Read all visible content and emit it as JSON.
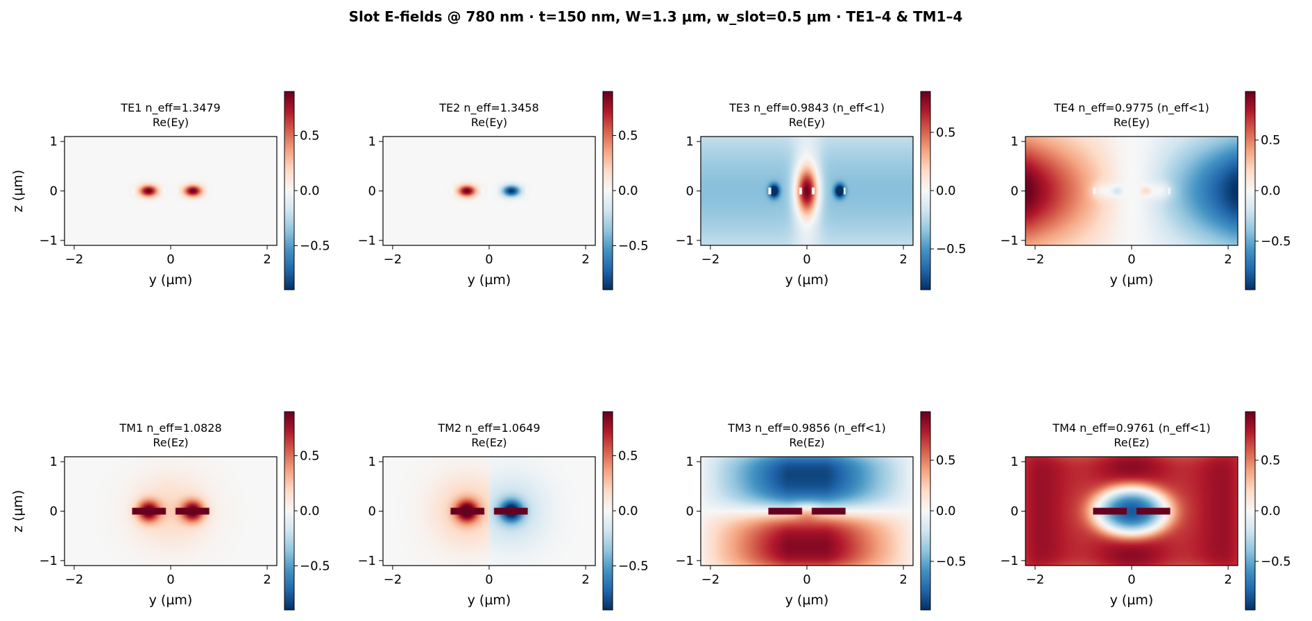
{
  "title": "Slot E-fields @ 780 nm · t=150 nm, W=1.3 μm, w_slot=0.5 μm · TE1–4 & TM1–4",
  "chart_data": {
    "type": "heatmap",
    "colormap": "RdBu_r",
    "colormap_colors": [
      "#053061",
      "#2166ac",
      "#4393c3",
      "#92c5de",
      "#d1e5f0",
      "#f7f7f7",
      "#fddbc7",
      "#f4a582",
      "#d6604d",
      "#b2182b",
      "#67001f"
    ],
    "grid": false,
    "panels": [
      {
        "mode": "TE1",
        "title_line1": "TE1  n_eff=1.3479",
        "title_line2": "Re(Ey)",
        "component": "Ey",
        "n_eff": 1.3479,
        "below_light_line": false,
        "xlabel": "y (µm)",
        "ylabel": "z (µm)",
        "xlim": [
          -2.2,
          2.2
        ],
        "ylim": [
          -1.1,
          1.1
        ],
        "xticks": [
          "−2",
          "0",
          "2"
        ],
        "yticks": [
          "1",
          "0",
          "−1"
        ],
        "clim": [
          -0.9,
          0.9
        ],
        "cbar_ticks": [
          "0.5",
          "0.0",
          "−0.5"
        ]
      },
      {
        "mode": "TE2",
        "title_line1": "TE2  n_eff=1.3458",
        "title_line2": "Re(Ey)",
        "component": "Ey",
        "n_eff": 1.3458,
        "below_light_line": false,
        "xlabel": "y (µm)",
        "ylabel": "",
        "xlim": [
          -2.2,
          2.2
        ],
        "ylim": [
          -1.1,
          1.1
        ],
        "xticks": [
          "−2",
          "0",
          "2"
        ],
        "yticks": [
          "1",
          "0",
          "−1"
        ],
        "clim": [
          -0.9,
          0.9
        ],
        "cbar_ticks": [
          "0.5",
          "0.0",
          "−0.5"
        ]
      },
      {
        "mode": "TE3",
        "title_line1": "TE3  n_eff=0.9843  (n_eff<1)",
        "title_line2": "Re(Ey)",
        "component": "Ey",
        "n_eff": 0.9843,
        "below_light_line": true,
        "xlabel": "y (µm)",
        "ylabel": "",
        "xlim": [
          -2.2,
          2.2
        ],
        "ylim": [
          -1.1,
          1.1
        ],
        "xticks": [
          "−2",
          "0",
          "2"
        ],
        "yticks": [
          "1",
          "0",
          "−1"
        ],
        "clim": [
          -0.85,
          0.85
        ],
        "cbar_ticks": [
          "0.5",
          "0.0",
          "−0.5"
        ]
      },
      {
        "mode": "TE4",
        "title_line1": "TE4  n_eff=0.9775  (n_eff<1)",
        "title_line2": "Re(Ey)",
        "component": "Ey",
        "n_eff": 0.9775,
        "below_light_line": true,
        "xlabel": "y (µm)",
        "ylabel": "",
        "xlim": [
          -2.2,
          2.2
        ],
        "ylim": [
          -1.1,
          1.1
        ],
        "xticks": [
          "−2",
          "0",
          "2"
        ],
        "yticks": [
          "1",
          "0",
          "−1"
        ],
        "clim": [
          -0.98,
          0.98
        ],
        "cbar_ticks": [
          "0.5",
          "0.0",
          "−0.5"
        ]
      },
      {
        "mode": "TM1",
        "title_line1": "TM1  n_eff=1.0828",
        "title_line2": "Re(Ez)",
        "component": "Ez",
        "n_eff": 1.0828,
        "below_light_line": false,
        "xlabel": "y (µm)",
        "ylabel": "z (µm)",
        "xlim": [
          -2.2,
          2.2
        ],
        "ylim": [
          -1.1,
          1.1
        ],
        "xticks": [
          "−2",
          "0",
          "2"
        ],
        "yticks": [
          "1",
          "0",
          "−1"
        ],
        "clim": [
          -0.9,
          0.9
        ],
        "cbar_ticks": [
          "0.5",
          "0.0",
          "−0.5"
        ]
      },
      {
        "mode": "TM2",
        "title_line1": "TM2  n_eff=1.0649",
        "title_line2": "Re(Ez)",
        "component": "Ez",
        "n_eff": 1.0649,
        "below_light_line": false,
        "xlabel": "y (µm)",
        "ylabel": "",
        "xlim": [
          -2.2,
          2.2
        ],
        "ylim": [
          -1.1,
          1.1
        ],
        "xticks": [
          "−2",
          "0",
          "2"
        ],
        "yticks": [
          "1",
          "0",
          "−1"
        ],
        "clim": [
          -0.9,
          0.9
        ],
        "cbar_ticks": [
          "0.5",
          "0.0",
          "−0.5"
        ]
      },
      {
        "mode": "TM3",
        "title_line1": "TM3  n_eff=0.9856  (n_eff<1)",
        "title_line2": "Re(Ez)",
        "component": "Ez",
        "n_eff": 0.9856,
        "below_light_line": true,
        "xlabel": "y (µm)",
        "ylabel": "",
        "xlim": [
          -2.2,
          2.2
        ],
        "ylim": [
          -1.1,
          1.1
        ],
        "xticks": [
          "−2",
          "0",
          "2"
        ],
        "yticks": [
          "1",
          "0",
          "−1"
        ],
        "clim": [
          -0.98,
          0.98
        ],
        "cbar_ticks": [
          "0.5",
          "0.0",
          "−0.5"
        ]
      },
      {
        "mode": "TM4",
        "title_line1": "TM4  n_eff=0.9761  (n_eff<1)",
        "title_line2": "Re(Ez)",
        "component": "Ez",
        "n_eff": 0.9761,
        "below_light_line": true,
        "xlabel": "y (µm)",
        "ylabel": "",
        "xlim": [
          -2.2,
          2.2
        ],
        "ylim": [
          -1.1,
          1.1
        ],
        "xticks": [
          "−2",
          "0",
          "2"
        ],
        "yticks": [
          "1",
          "0",
          "−1"
        ],
        "clim": [
          -0.98,
          0.98
        ],
        "cbar_ticks": [
          "0.5",
          "0.0",
          "−0.5"
        ]
      }
    ]
  }
}
